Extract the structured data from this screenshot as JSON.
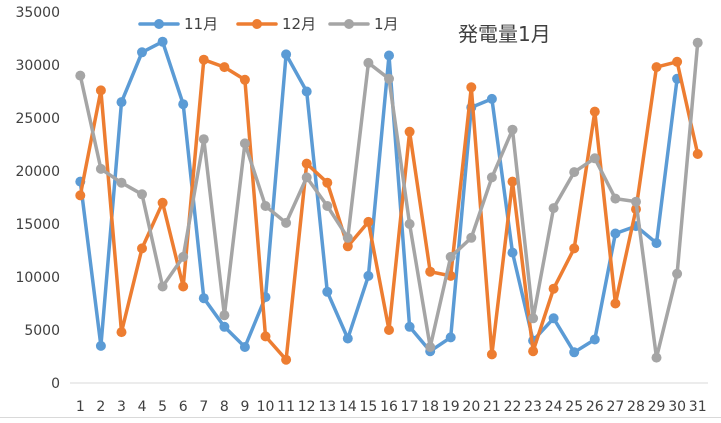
{
  "chart_data": {
    "type": "line",
    "title": "発電量1月",
    "xlabel": "",
    "ylabel": "",
    "ylim": [
      0,
      35000
    ],
    "yticks": [
      0,
      5000,
      10000,
      15000,
      20000,
      25000,
      30000,
      35000
    ],
    "grid": false,
    "legend_position": "top-left",
    "categories": [
      "1",
      "2",
      "3",
      "4",
      "5",
      "6",
      "7",
      "8",
      "9",
      "10",
      "11",
      "12",
      "13",
      "14",
      "15",
      "16",
      "17",
      "18",
      "19",
      "20",
      "21",
      "22",
      "23",
      "24",
      "25",
      "26",
      "27",
      "28",
      "29",
      "30",
      "31"
    ],
    "series": [
      {
        "name": "11月",
        "color": "#5b9bd5",
        "values": [
          19000,
          3500,
          26500,
          31200,
          32200,
          26300,
          8000,
          5300,
          3400,
          8100,
          31000,
          27500,
          8600,
          4200,
          10100,
          30900,
          5300,
          3000,
          4300,
          26000,
          26800,
          12300,
          4000,
          6100,
          2900,
          4100,
          14100,
          14800,
          13200,
          28700,
          null
        ]
      },
      {
        "name": "12月",
        "color": "#ed7d31",
        "values": [
          17700,
          27600,
          4800,
          12700,
          17000,
          9100,
          30500,
          29800,
          28600,
          4400,
          2200,
          20700,
          18900,
          12900,
          15200,
          5000,
          23700,
          10500,
          10100,
          27900,
          2700,
          19000,
          3000,
          8900,
          12700,
          25600,
          7500,
          16400,
          29800,
          30300,
          21600
        ]
      },
      {
        "name": "1月",
        "color": "#a5a5a5",
        "values": [
          29000,
          20200,
          18900,
          17800,
          9100,
          11900,
          23000,
          6400,
          22600,
          16700,
          15100,
          19400,
          16700,
          13700,
          30200,
          28700,
          15000,
          3400,
          11900,
          13700,
          19400,
          23900,
          6100,
          16500,
          19900,
          21200,
          17400,
          17100,
          2400,
          10300,
          32100
        ]
      }
    ]
  }
}
